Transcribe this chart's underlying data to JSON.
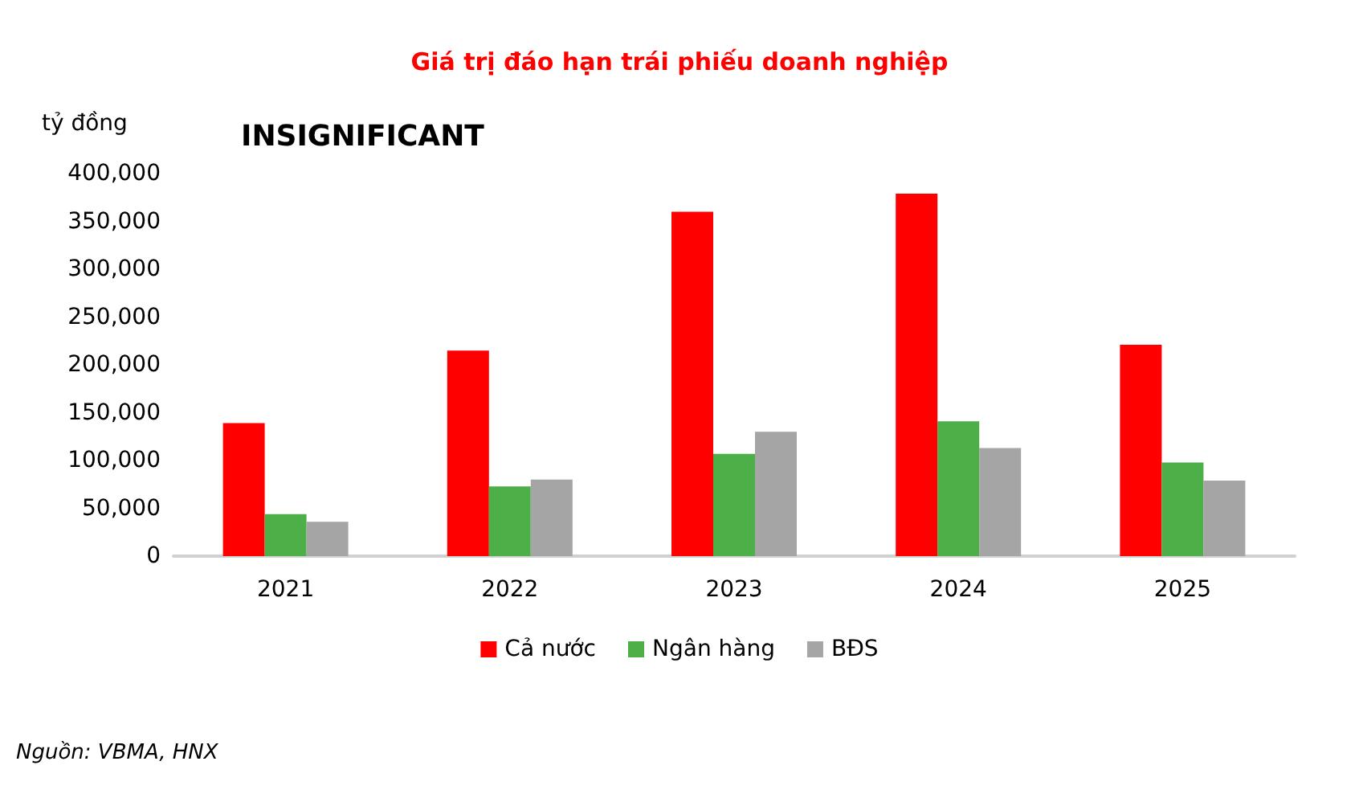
{
  "chart_data": {
    "type": "bar",
    "title": "Giá trị đáo hạn trái phiếu doanh nghiệp",
    "ylabel": "tỷ đồng",
    "annotations": [
      "INSIGNIFICANT",
      "Nguồn: VBMA, HNX"
    ],
    "categories": [
      "2021",
      "2022",
      "2023",
      "2024",
      "2025"
    ],
    "series": [
      {
        "name": "Cả nước",
        "color": "#ff0000",
        "values": [
          139000,
          215000,
          360000,
          379000,
          221000
        ]
      },
      {
        "name": "Ngân hàng",
        "color": "#4caf48",
        "values": [
          44000,
          73000,
          107000,
          141000,
          98000
        ]
      },
      {
        "name": "BĐS",
        "color": "#a5a5a5",
        "values": [
          36000,
          80000,
          130000,
          113000,
          79000
        ]
      }
    ],
    "ylim": [
      0,
      400000
    ],
    "yticks": [
      0,
      {
        "value": 50000,
        "label": "50,000"
      },
      {
        "value": 100000,
        "label": "100,000"
      },
      {
        "value": 150000,
        "label": "150,000"
      },
      {
        "value": 200000,
        "label": "200,000"
      },
      {
        "value": 250000,
        "label": "250,000"
      },
      {
        "value": 300000,
        "label": "300,000"
      },
      {
        "value": 350000,
        "label": "350,000"
      },
      {
        "value": 400000,
        "label": "400,000"
      }
    ],
    "grid": false,
    "legend": "bottom"
  }
}
